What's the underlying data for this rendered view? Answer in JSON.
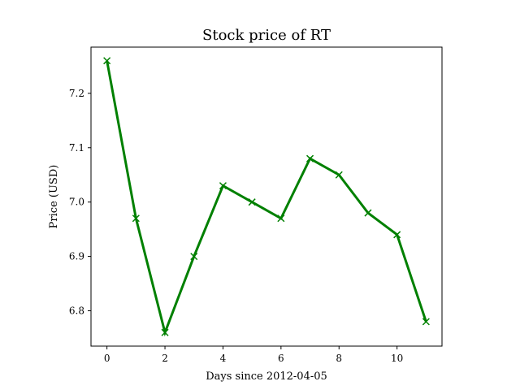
{
  "chart_data": {
    "type": "line",
    "title": "Stock price of RT",
    "xlabel": "Days since 2012-04-05",
    "ylabel": "Price (USD)",
    "xlim": [
      -0.55,
      11.55
    ],
    "ylim": [
      6.735,
      7.285
    ],
    "x_ticks": [
      0,
      2,
      4,
      6,
      8,
      10
    ],
    "y_ticks": [
      6.8,
      6.9,
      7.0,
      7.1,
      7.2
    ],
    "y_tick_labels": [
      "6.8",
      "6.9",
      "7.0",
      "7.1",
      "7.2"
    ],
    "grid": false,
    "series": [
      {
        "color": "#008000",
        "marker": "x",
        "x": [
          0,
          1,
          2,
          3,
          4,
          5,
          6,
          7,
          8,
          9,
          10,
          11
        ],
        "y": [
          7.26,
          6.97,
          6.76,
          6.9,
          7.03,
          7.0,
          6.97,
          7.08,
          7.05,
          6.98,
          6.94,
          6.78
        ]
      }
    ]
  }
}
